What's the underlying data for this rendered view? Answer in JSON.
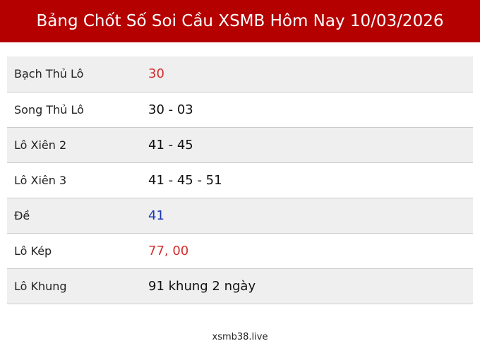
{
  "header": {
    "title": "Bảng Chốt Số Soi Cầu XSMB Hôm Nay 10/03/2026"
  },
  "table": {
    "rows": [
      [
        "Bạch Thủ Lô",
        "30"
      ],
      [
        "Song Thủ Lô",
        "30 - 03"
      ],
      [
        "Lô Xiên 2",
        "41 - 45"
      ],
      [
        "Lô Xiên 3",
        "41 - 45 - 51"
      ],
      [
        "Đề",
        "41"
      ],
      [
        "Lô Kép",
        "77, 00"
      ],
      [
        "Lô Khung",
        "91 khung 2 ngày"
      ]
    ]
  },
  "footer": {
    "text": "xsmb38.live"
  }
}
